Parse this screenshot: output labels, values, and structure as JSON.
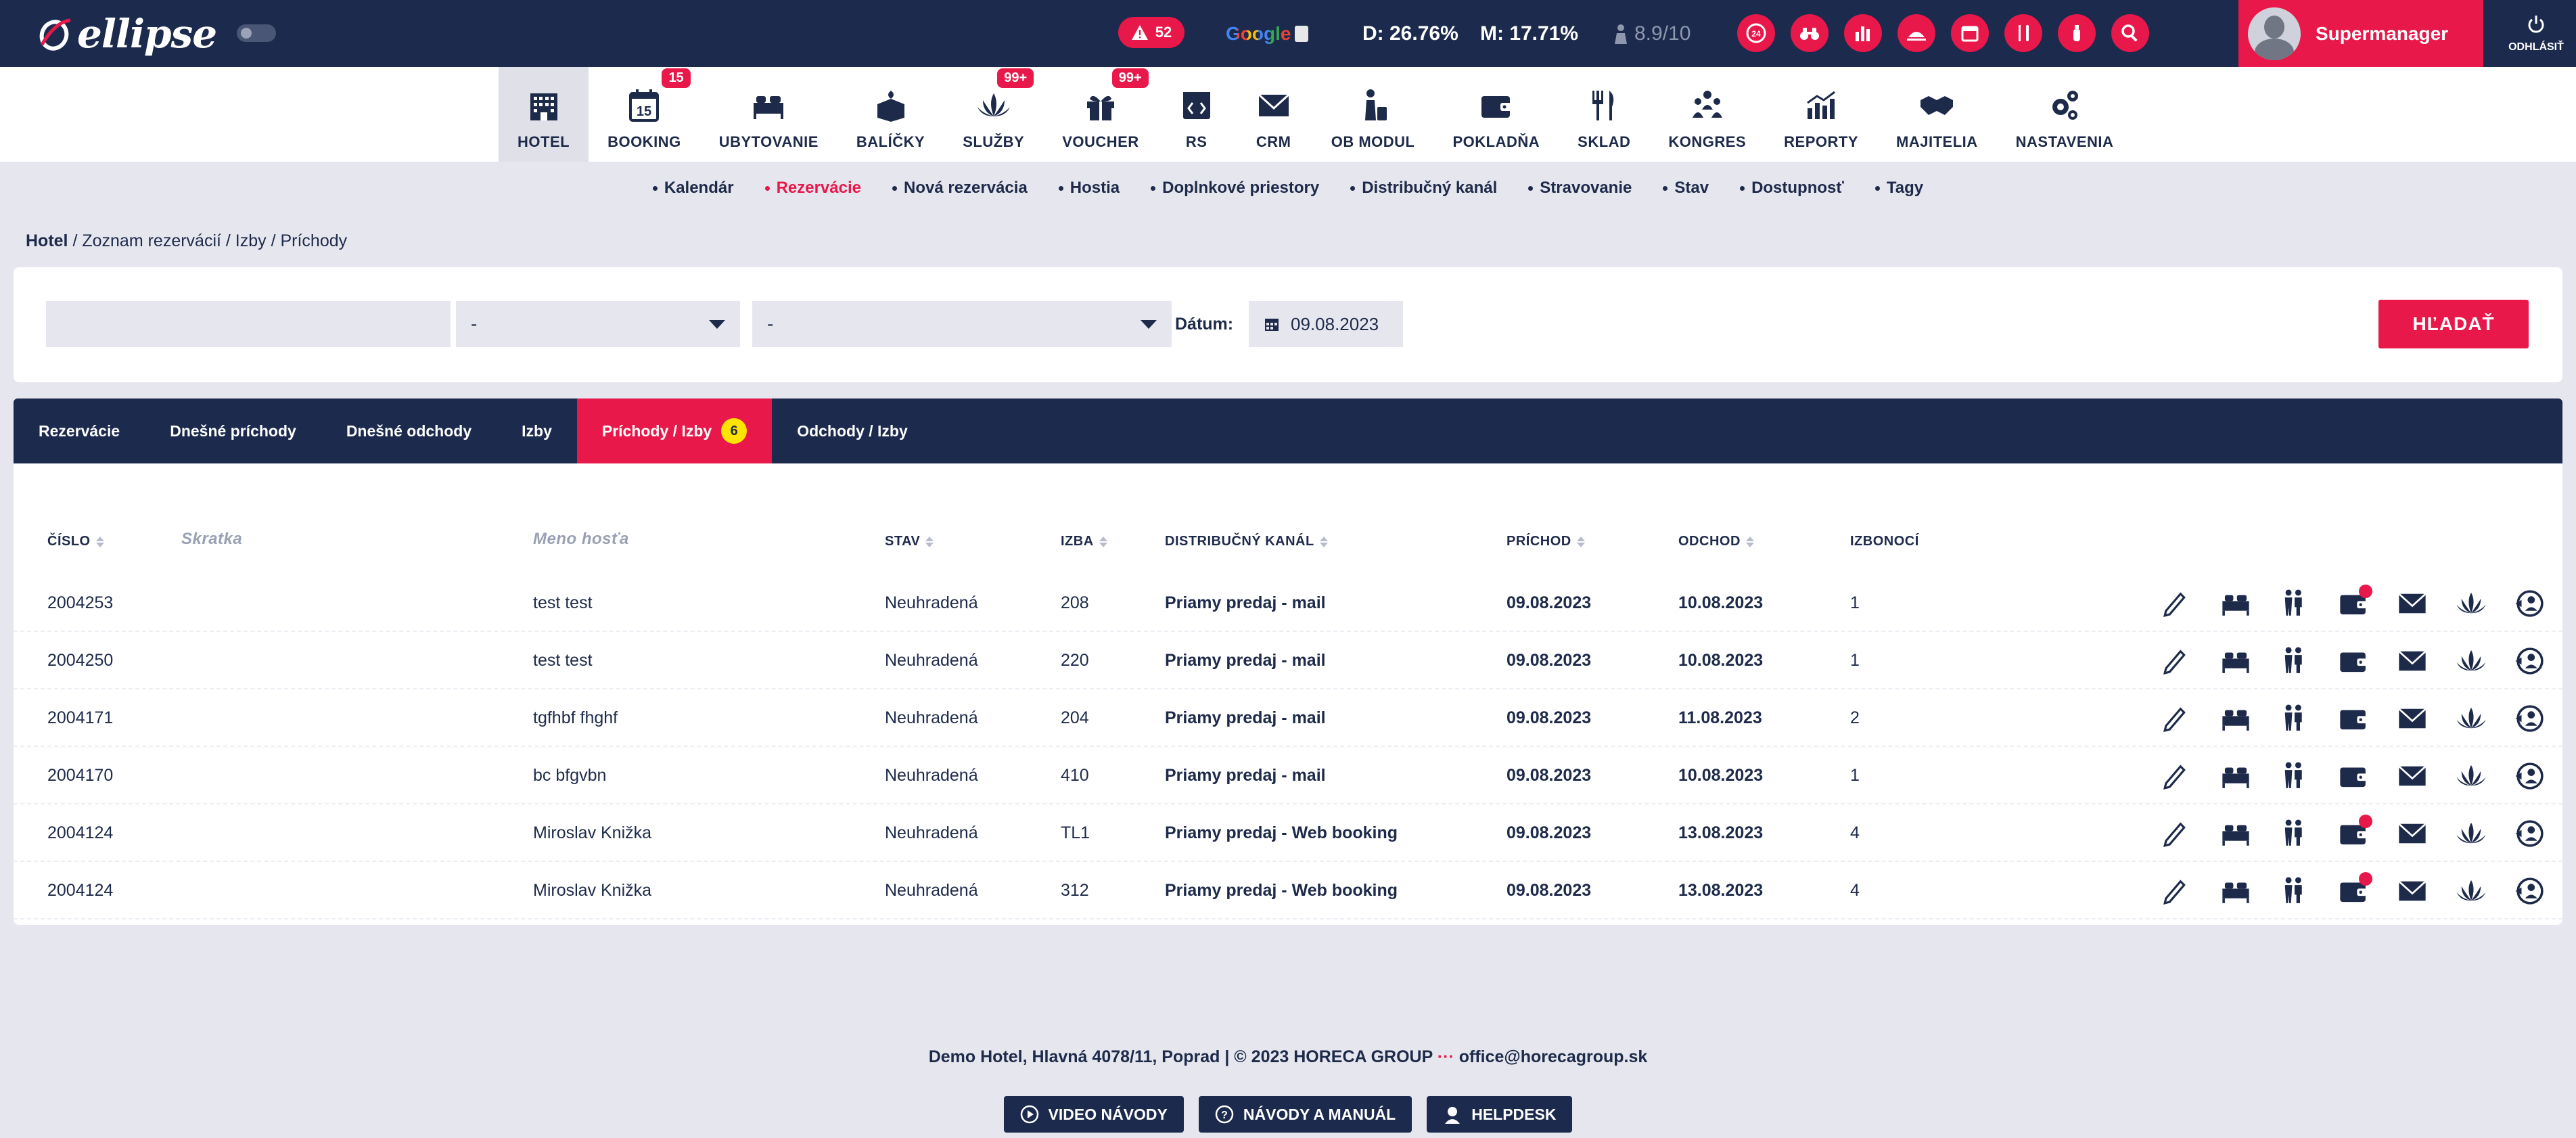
{
  "brand": {
    "logo_text": "ellipse"
  },
  "header": {
    "alerts_count": "52",
    "google_label": "Google",
    "stat_d": "D: 26.76%",
    "stat_m": "M: 17.71%",
    "rating": "8.9/10",
    "user_name": "Supermanager",
    "logout_label": "ODHLÁSIŤ",
    "top_icons": [
      "24h-icon",
      "binoculars-icon",
      "bar-chart-icon",
      "room-service-icon",
      "calendar-icon",
      "cutlery-icon",
      "fire-extinguisher-icon",
      "search-icon"
    ]
  },
  "modules": [
    {
      "label": "HOTEL",
      "icon": "hotel-icon",
      "active": true,
      "badge": ""
    },
    {
      "label": "BOOKING",
      "icon": "calendar-15-icon",
      "active": false,
      "badge": "15"
    },
    {
      "label": "UBYTOVANIE",
      "icon": "bed-icon",
      "active": false,
      "badge": ""
    },
    {
      "label": "BALÍČKY",
      "icon": "package-icon",
      "active": false,
      "badge": ""
    },
    {
      "label": "SLUŽBY",
      "icon": "lotus-icon",
      "active": false,
      "badge": "99+"
    },
    {
      "label": "VOUCHER",
      "icon": "gift-icon",
      "active": false,
      "badge": "99+"
    },
    {
      "label": "RS",
      "icon": "code-icon",
      "active": false,
      "badge": ""
    },
    {
      "label": "CRM",
      "icon": "envelope-icon",
      "active": false,
      "badge": ""
    },
    {
      "label": "OB MODUL",
      "icon": "person-luggage-icon",
      "active": false,
      "badge": ""
    },
    {
      "label": "POKLADŇA",
      "icon": "wallet-icon",
      "active": false,
      "badge": ""
    },
    {
      "label": "SKLAD",
      "icon": "cutlery-icon",
      "active": false,
      "badge": ""
    },
    {
      "label": "KONGRES",
      "icon": "group-icon",
      "active": false,
      "badge": ""
    },
    {
      "label": "REPORTY",
      "icon": "chart-icon",
      "active": false,
      "badge": ""
    },
    {
      "label": "MAJITELIA",
      "icon": "handshake-icon",
      "active": false,
      "badge": ""
    },
    {
      "label": "NASTAVENIA",
      "icon": "gears-icon",
      "active": false,
      "badge": ""
    }
  ],
  "subnav": [
    {
      "label": "Kalendár",
      "active": false
    },
    {
      "label": "Rezervácie",
      "active": true
    },
    {
      "label": "Nová rezervácia",
      "active": false
    },
    {
      "label": "Hostia",
      "active": false
    },
    {
      "label": "Doplnkové priestory",
      "active": false
    },
    {
      "label": "Distribučný kanál",
      "active": false
    },
    {
      "label": "Stravovanie",
      "active": false
    },
    {
      "label": "Stav",
      "active": false
    },
    {
      "label": "Dostupnosť",
      "active": false
    },
    {
      "label": "Tagy",
      "active": false
    }
  ],
  "breadcrumb": {
    "root": "Hotel",
    "rest": " / Zoznam rezervácií / Izby / Príchody"
  },
  "filters": {
    "search_value": "",
    "select1_value": "-",
    "select2_value": "-",
    "date_label": "Dátum:",
    "date_value": "09.08.2023",
    "search_button": "HĽADAŤ"
  },
  "tabs": [
    {
      "label": "Rezervácie",
      "active": false,
      "count": ""
    },
    {
      "label": "Dnešné príchody",
      "active": false,
      "count": ""
    },
    {
      "label": "Dnešné odchody",
      "active": false,
      "count": ""
    },
    {
      "label": "Izby",
      "active": false,
      "count": ""
    },
    {
      "label": "Príchody / Izby",
      "active": true,
      "count": "6"
    },
    {
      "label": "Odchody / Izby",
      "active": false,
      "count": ""
    }
  ],
  "table": {
    "headers": {
      "cislo": "ČÍSLO",
      "skratka": "Skratka",
      "meno": "Meno hosťa",
      "stav": "STAV",
      "izba": "IZBA",
      "kanal": "DISTRIBUČNÝ KANÁL",
      "prichod": "PRÍCHOD",
      "odchod": "ODCHOD",
      "izbonoci": "IZBONOCÍ"
    },
    "rows": [
      {
        "cislo": "2004253",
        "meno": "test test",
        "stav": "Neuhradená",
        "izba": "208",
        "kanal": "Priamy predaj - mail",
        "prichod": "09.08.2023",
        "odchod": "10.08.2023",
        "izbonoci": "1",
        "wallet_alert": true
      },
      {
        "cislo": "2004250",
        "meno": "test test",
        "stav": "Neuhradená",
        "izba": "220",
        "kanal": "Priamy predaj - mail",
        "prichod": "09.08.2023",
        "odchod": "10.08.2023",
        "izbonoci": "1",
        "wallet_alert": false
      },
      {
        "cislo": "2004171",
        "meno": "tgfhbf fhghf",
        "stav": "Neuhradená",
        "izba": "204",
        "kanal": "Priamy predaj - mail",
        "prichod": "09.08.2023",
        "odchod": "11.08.2023",
        "izbonoci": "2",
        "wallet_alert": false
      },
      {
        "cislo": "2004170",
        "meno": "bc bfgvbn",
        "stav": "Neuhradená",
        "izba": "410",
        "kanal": "Priamy predaj - mail",
        "prichod": "09.08.2023",
        "odchod": "10.08.2023",
        "izbonoci": "1",
        "wallet_alert": false
      },
      {
        "cislo": "2004124",
        "meno": "Miroslav Knižka",
        "stav": "Neuhradená",
        "izba": "TL1",
        "kanal": "Priamy predaj - Web booking",
        "prichod": "09.08.2023",
        "odchod": "13.08.2023",
        "izbonoci": "4",
        "wallet_alert": true
      },
      {
        "cislo": "2004124",
        "meno": "Miroslav Knižka",
        "stav": "Neuhradená",
        "izba": "312",
        "kanal": "Priamy predaj - Web booking",
        "prichod": "09.08.2023",
        "odchod": "13.08.2023",
        "izbonoci": "4",
        "wallet_alert": true
      }
    ],
    "row_actions": [
      "edit-icon",
      "bed-icon",
      "guests-icon",
      "wallet-icon",
      "envelope-icon",
      "lotus-icon",
      "checkout-icon"
    ]
  },
  "footer": {
    "address": "Demo Hotel, Hlavná 4078/11, Poprad | © 2023 HORECA GROUP",
    "separator": "···",
    "email": "office@horecagroup.sk",
    "buttons": [
      {
        "label": "VIDEO NÁVODY",
        "icon": "play-icon"
      },
      {
        "label": "NÁVODY A MANUÁL",
        "icon": "question-icon"
      },
      {
        "label": "HELPDESK",
        "icon": "support-agent-icon"
      }
    ]
  },
  "colors": {
    "navy": "#1c2a4d",
    "accent": "#e8184a",
    "bg": "#e6e7ee",
    "badge_yellow": "#ffe400"
  }
}
